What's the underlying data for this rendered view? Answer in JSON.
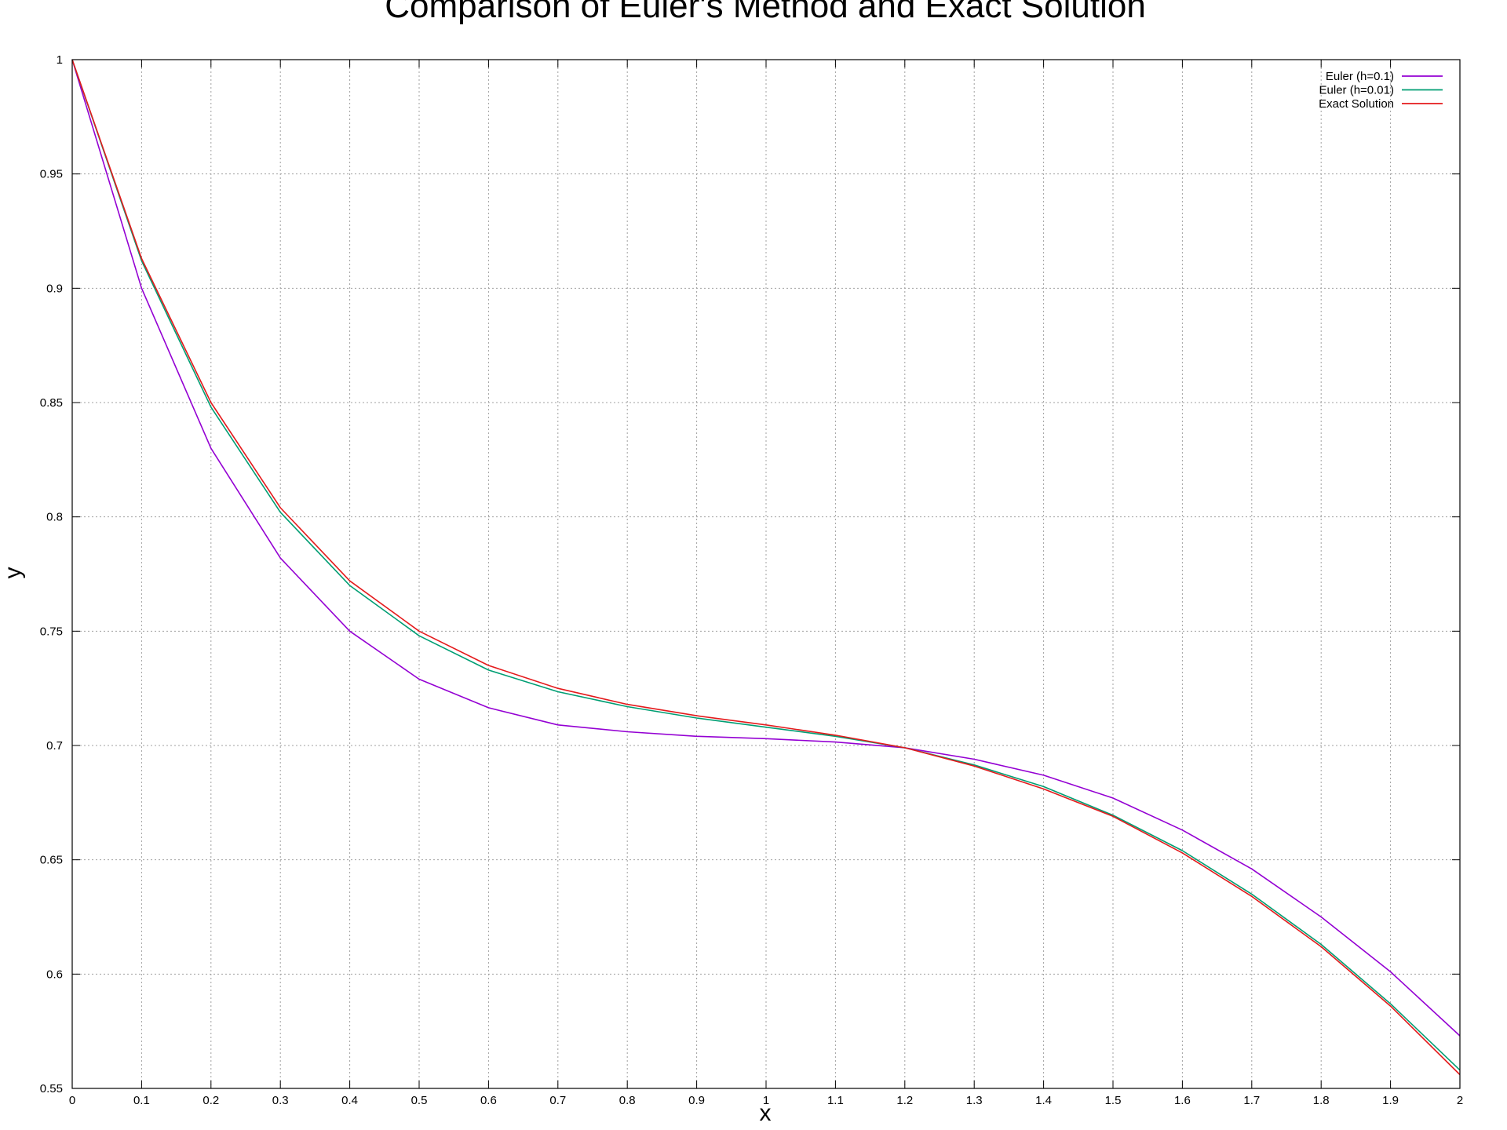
{
  "chart_data": {
    "type": "line",
    "title": "Comparison of Euler's Method and Exact Solution",
    "xlabel": "x",
    "ylabel": "y",
    "xlim": [
      0,
      2
    ],
    "ylim": [
      0.55,
      1
    ],
    "xticks": [
      0,
      0.1,
      0.2,
      0.3,
      0.4,
      0.5,
      0.6,
      0.7,
      0.8,
      0.9,
      1,
      1.1,
      1.2,
      1.3,
      1.4,
      1.5,
      1.6,
      1.7,
      1.8,
      1.9,
      2
    ],
    "yticks": [
      0.55,
      0.6,
      0.65,
      0.7,
      0.75,
      0.8,
      0.85,
      0.9,
      0.95,
      1
    ],
    "grid": true,
    "legend_position": "top-right",
    "series": [
      {
        "name": "Euler (h=0.1)",
        "color": "#9400d3",
        "x": [
          0,
          0.1,
          0.2,
          0.3,
          0.4,
          0.5,
          0.6,
          0.7,
          0.8,
          0.9,
          1.0,
          1.1,
          1.2,
          1.3,
          1.4,
          1.5,
          1.6,
          1.7,
          1.8,
          1.9,
          2.0
        ],
        "y": [
          1.0,
          0.9,
          0.83,
          0.782,
          0.75,
          0.729,
          0.7165,
          0.709,
          0.706,
          0.704,
          0.703,
          0.7015,
          0.699,
          0.694,
          0.687,
          0.677,
          0.663,
          0.646,
          0.625,
          0.601,
          0.573
        ]
      },
      {
        "name": "Euler (h=0.01)",
        "color": "#009e73",
        "x": [
          0,
          0.1,
          0.2,
          0.3,
          0.4,
          0.5,
          0.6,
          0.7,
          0.8,
          0.9,
          1.0,
          1.1,
          1.2,
          1.3,
          1.4,
          1.5,
          1.6,
          1.7,
          1.8,
          1.9,
          2.0
        ],
        "y": [
          1.0,
          0.912,
          0.848,
          0.802,
          0.77,
          0.748,
          0.733,
          0.7235,
          0.717,
          0.712,
          0.708,
          0.704,
          0.699,
          0.6915,
          0.682,
          0.6695,
          0.654,
          0.635,
          0.613,
          0.587,
          0.558
        ]
      },
      {
        "name": "Exact Solution",
        "color": "#e41a1c",
        "x": [
          0,
          0.1,
          0.2,
          0.3,
          0.4,
          0.5,
          0.6,
          0.7,
          0.8,
          0.9,
          1.0,
          1.1,
          1.2,
          1.3,
          1.4,
          1.5,
          1.6,
          1.7,
          1.8,
          1.9,
          2.0
        ],
        "y": [
          1.0,
          0.913,
          0.85,
          0.804,
          0.772,
          0.75,
          0.735,
          0.725,
          0.718,
          0.713,
          0.709,
          0.7045,
          0.699,
          0.691,
          0.681,
          0.669,
          0.653,
          0.634,
          0.612,
          0.586,
          0.556
        ]
      }
    ]
  }
}
